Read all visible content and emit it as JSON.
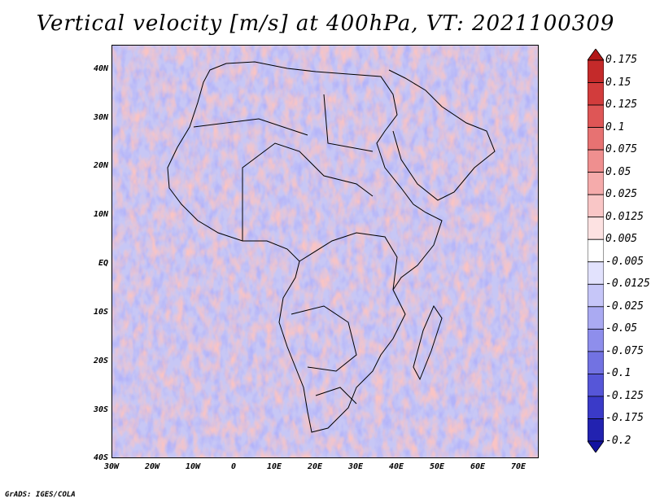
{
  "title": "Vertical velocity [m/s] at 400hPa, VT: 2021100309",
  "footer": "GrADS: IGES/COLA",
  "map": {
    "lat_labels": [
      "40N",
      "30N",
      "20N",
      "10N",
      "EQ",
      "10S",
      "20S",
      "30S",
      "40S"
    ],
    "lon_labels": [
      "30W",
      "20W",
      "10W",
      "0",
      "10E",
      "20E",
      "30E",
      "40E",
      "50E",
      "60E",
      "70E"
    ]
  },
  "colorbar": {
    "labels": [
      "0.175",
      "0.15",
      "0.125",
      "0.1",
      "0.075",
      "0.05",
      "0.025",
      "0.0125",
      "0.005",
      "-0.005",
      "-0.0125",
      "-0.025",
      "-0.05",
      "-0.075",
      "-0.1",
      "-0.125",
      "-0.175",
      "-0.2"
    ],
    "colors": [
      "#b21818",
      "#c42a2a",
      "#d23c3c",
      "#de5656",
      "#e77272",
      "#ef8f8f",
      "#f5abab",
      "#f9c6c6",
      "#fde2e2",
      "#ffffff",
      "#e2e2fd",
      "#c6c6f8",
      "#aaaaf2",
      "#8e8eec",
      "#7272e2",
      "#5656d8",
      "#3a3ac8",
      "#2222b0",
      "#1212a0"
    ]
  }
}
